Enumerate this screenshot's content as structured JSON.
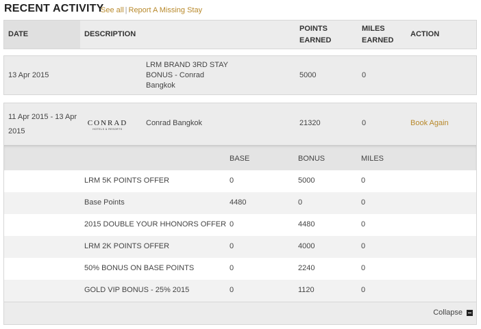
{
  "title": "RECENT ACTIVITY",
  "links": {
    "see_all": "See all",
    "separator": "|",
    "report": "Report A Missing Stay"
  },
  "header": {
    "date": "DATE",
    "description": "DESCRIPTION",
    "points_line1": "POINTS",
    "points_line2": "EARNED",
    "miles_line1": "MILES",
    "miles_line2": "EARNED",
    "action": "ACTION"
  },
  "rows": [
    {
      "date": "13 Apr 2015",
      "desc_line1": "LRM BRAND 3RD STAY",
      "desc_line2": "BONUS - Conrad",
      "desc_line3": "Bangkok",
      "points": "5000",
      "miles": "0"
    },
    {
      "date_line1": "11 Apr 2015 - 13 Apr",
      "date_line2": "2015",
      "logo_main": "CONRAD",
      "logo_sub": "HOTELS & RESORTS",
      "description": "Conrad Bangkok",
      "points": "21320",
      "miles": "0",
      "action": "Book Again"
    }
  ],
  "detail": {
    "headers": {
      "base": "BASE",
      "bonus": "BONUS",
      "miles": "MILES"
    },
    "items": [
      {
        "label": "LRM 5K POINTS OFFER",
        "base": "0",
        "bonus": "5000",
        "miles": "0"
      },
      {
        "label": "Base Points",
        "base": "4480",
        "bonus": "0",
        "miles": "0"
      },
      {
        "label": "2015 DOUBLE YOUR HHONORS OFFER",
        "base": "0",
        "bonus": "4480",
        "miles": "0"
      },
      {
        "label": "LRM 2K POINTS OFFER",
        "base": "0",
        "bonus": "4000",
        "miles": "0"
      },
      {
        "label": "50% BONUS ON BASE POINTS",
        "base": "0",
        "bonus": "2240",
        "miles": "0"
      },
      {
        "label": "GOLD VIP BONUS - 25% 2015",
        "base": "0",
        "bonus": "1120",
        "miles": "0"
      }
    ],
    "collapse": "Collapse"
  }
}
